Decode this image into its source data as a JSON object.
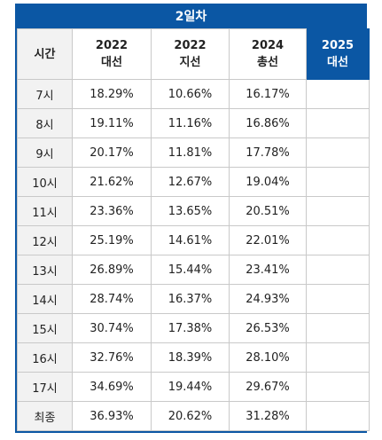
{
  "title": "2일차",
  "header": {
    "col0": "시간",
    "cols": [
      {
        "year": "2022",
        "type": "대선"
      },
      {
        "year": "2022",
        "type": "지선"
      },
      {
        "year": "2024",
        "type": "총선"
      },
      {
        "year": "2025",
        "type": "대선"
      }
    ]
  },
  "rows": [
    {
      "time": "7시",
      "v1": "18.29%",
      "v2": "10.66%",
      "v3": "16.17%",
      "v4": ""
    },
    {
      "time": "8시",
      "v1": "19.11%",
      "v2": "11.16%",
      "v3": "16.86%",
      "v4": ""
    },
    {
      "time": "9시",
      "v1": "20.17%",
      "v2": "11.81%",
      "v3": "17.78%",
      "v4": ""
    },
    {
      "time": "10시",
      "v1": "21.62%",
      "v2": "12.67%",
      "v3": "19.04%",
      "v4": ""
    },
    {
      "time": "11시",
      "v1": "23.36%",
      "v2": "13.65%",
      "v3": "20.51%",
      "v4": ""
    },
    {
      "time": "12시",
      "v1": "25.19%",
      "v2": "14.61%",
      "v3": "22.01%",
      "v4": ""
    },
    {
      "time": "13시",
      "v1": "26.89%",
      "v2": "15.44%",
      "v3": "23.41%",
      "v4": ""
    },
    {
      "time": "14시",
      "v1": "28.74%",
      "v2": "16.37%",
      "v3": "24.93%",
      "v4": ""
    },
    {
      "time": "15시",
      "v1": "30.74%",
      "v2": "17.38%",
      "v3": "26.53%",
      "v4": ""
    },
    {
      "time": "16시",
      "v1": "32.76%",
      "v2": "18.39%",
      "v3": "28.10%",
      "v4": ""
    },
    {
      "time": "17시",
      "v1": "34.69%",
      "v2": "19.44%",
      "v3": "29.67%",
      "v4": ""
    },
    {
      "time": "최종",
      "v1": "36.93%",
      "v2": "20.62%",
      "v3": "31.28%",
      "v4": ""
    }
  ],
  "colors": {
    "accent": "#0b57a4",
    "row_header_bg": "#f2f2f2",
    "border": "#c9c9c9"
  }
}
